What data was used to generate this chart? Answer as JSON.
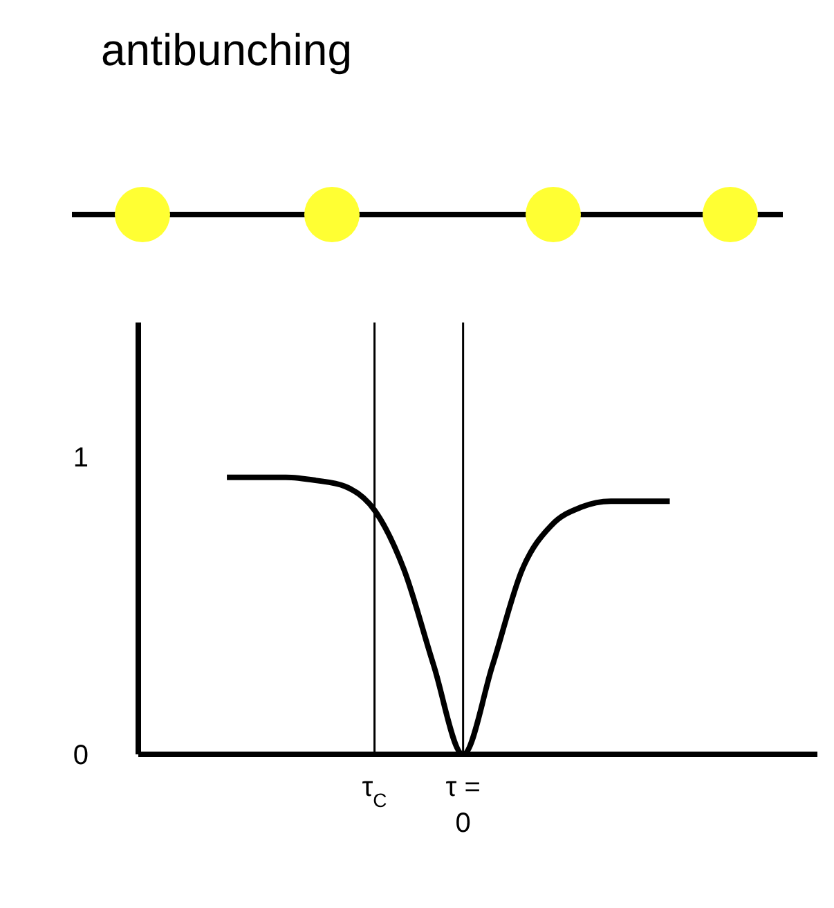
{
  "chart_data": {
    "type": "line",
    "title": "antibunching",
    "categories": [
      null,
      null,
      null,
      null,
      null,
      null,
      null,
      null,
      "τ$_{C}$",
      null,
      null,
      "τ = 0",
      null,
      null,
      null,
      null,
      null,
      null,
      null,
      null,
      null,
      null,
      null,
      null
    ],
    "series": [
      {
        "color": "#000000",
        "values": [
          null,
          null,
          null,
          0.93,
          0.93,
          0.93,
          0.92,
          0.9,
          0.82,
          0.62,
          0.3,
          0,
          0.3,
          0.62,
          0.77,
          0.83,
          0.85,
          0.85,
          0.85,
          null,
          null,
          null,
          null,
          null
        ]
      }
    ],
    "ylim": [
      0,
      1.45
    ],
    "yticks": [
      0,
      1
    ],
    "ref_lines": [
      {
        "axis": "x",
        "value": "τ$_{C}$",
        "color": "#000000"
      },
      {
        "axis": "x",
        "value": "τ = 0",
        "color": "#000000"
      }
    ],
    "marker": "none",
    "line_style": "solid"
  }
}
